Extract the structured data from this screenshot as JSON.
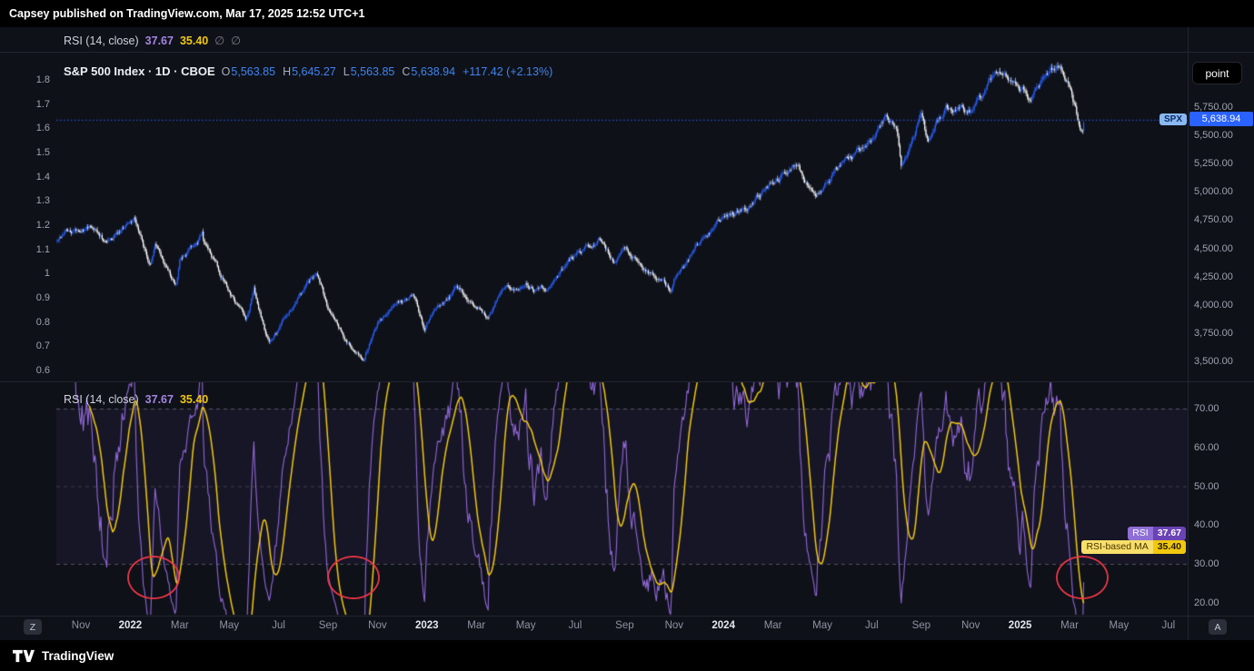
{
  "meta": {
    "publisher_line": "Capsey published on TradingView.com, Mar 17, 2025 12:52 UTC+1",
    "brand_name": "TradingView"
  },
  "colors": {
    "up_candle": "#2962FF",
    "down_candle": "#FFFFFF",
    "rsi_line": "#9168d8",
    "rsi_ma_line": "#F2C80F",
    "current_price_line": "#2962FF",
    "annotation_circle": "#F23645",
    "band_fill": "rgba(126,87,194,0.08)"
  },
  "collapsed_rsi_legend": {
    "name": "RSI (14, close)",
    "rsi_value": "37.67",
    "ma_value": "35.40",
    "empty_a": "∅",
    "empty_b": "∅"
  },
  "price_pane": {
    "legend": {
      "title": "S&P 500 Index · 1D · CBOE",
      "o_label": "O",
      "o_value": "5,563.85",
      "h_label": "H",
      "h_value": "5,645.27",
      "l_label": "L",
      "l_value": "5,563.85",
      "c_label": "C",
      "c_value": "5,638.94",
      "change": "+117.42 (+2.13%)"
    },
    "unit_button_label": "point",
    "symbol_tag": "SPX",
    "last_price_label": "5,638.94",
    "left_axis_labels": [
      "1.8",
      "1.7",
      "1.6",
      "1.5",
      "1.4",
      "1.3",
      "1.2",
      "1.1",
      "1",
      "0.9",
      "0.8",
      "0.7",
      "0.6"
    ],
    "right_axis_labels": [
      "5,750.00",
      "5,500.00",
      "5,250.00",
      "5,000.00",
      "4,750.00",
      "4,500.00",
      "4,250.00",
      "4,000.00",
      "3,750.00",
      "3,500.00"
    ]
  },
  "rsi_pane": {
    "legend": {
      "name": "RSI (14, close)",
      "rsi_value": "37.67",
      "ma_value": "35.40"
    },
    "right_axis_labels": [
      "70.00",
      "60.00",
      "50.00",
      "40.00",
      "30.00",
      "20.00"
    ],
    "rsi_tag": "RSI",
    "rsi_tag_value": "37.67",
    "ma_tag": "RSI-based MA",
    "ma_tag_value": "35.40"
  },
  "time_axis": [
    "Nov",
    "2022",
    "Mar",
    "May",
    "Jul",
    "Sep",
    "Nov",
    "2023",
    "Mar",
    "May",
    "Jul",
    "Sep",
    "Nov",
    "2024",
    "Mar",
    "May",
    "Jul",
    "Sep",
    "Nov",
    "2025",
    "Mar",
    "May",
    "Jul"
  ],
  "corner_buttons": {
    "left": "Z",
    "right": "A"
  },
  "chart_data": [
    {
      "type": "candlestick",
      "title": "S&P 500 Index",
      "interval": "1D",
      "exchange": "CBOE",
      "ohlc": {
        "open": 5563.85,
        "high": 5645.27,
        "low": 5563.85,
        "close": 5638.94,
        "change": 117.42,
        "change_pct": 2.13
      },
      "right_axis_ticks": [
        5750,
        5500,
        5250,
        5000,
        4750,
        4500,
        4250,
        4000,
        3750,
        3500
      ],
      "left_axis_ticks": [
        1.8,
        1.7,
        1.6,
        1.5,
        1.4,
        1.3,
        1.2,
        1.1,
        1,
        0.9,
        0.8,
        0.7,
        0.6
      ],
      "x_start": "Oct 2021",
      "x_end": "Mar 2025",
      "anchors_months_from_oct_2021": [
        0,
        0.5,
        1.5,
        2,
        3,
        3.15,
        3.8,
        4,
        4.85,
        5,
        5.9,
        6,
        7,
        7.7,
        8,
        8.6,
        9,
        10,
        10.55,
        11,
        12,
        12.45,
        13,
        13.8,
        14,
        14.45,
        14.9,
        15,
        16,
        16.15,
        17,
        17.45,
        18,
        19,
        19.8,
        20,
        21,
        22,
        22.6,
        23,
        24,
        24.9,
        25,
        26,
        27,
        28,
        29,
        30,
        30.7,
        31,
        32,
        33,
        33.55,
        34,
        34.2,
        35,
        35.25,
        36,
        37,
        38,
        39,
        39.45,
        40,
        40.6,
        41,
        41.5,
        41.62
      ],
      "anchors_close": [
        4544,
        4630,
        4715,
        4567,
        4766,
        4800,
        4340,
        4516,
        4150,
        4374,
        4630,
        4530,
        4132,
        3900,
        4132,
        3675,
        3785,
        4130,
        4305,
        3955,
        3590,
        3500,
        3872,
        4090,
        4080,
        4100,
        3790,
        3840,
        4077,
        4180,
        3970,
        3860,
        4109,
        4169,
        4120,
        4180,
        4450,
        4589,
        4370,
        4508,
        4288,
        4120,
        4194,
        4568,
        4770,
        4846,
        5096,
        5254,
        4970,
        5036,
        5278,
        5460,
        5667,
        5522,
        5190,
        5648,
        5410,
        5762,
        5705,
        6032,
        5882,
        5830,
        6041,
        6144,
        5955,
        5521,
        5639
      ]
    },
    {
      "type": "line",
      "title": "RSI (14, close)",
      "series": [
        {
          "name": "RSI",
          "last": 37.67
        },
        {
          "name": "RSI-based MA",
          "last": 35.4
        }
      ],
      "levels_dashed": [
        70,
        50,
        30
      ],
      "y_ticks": [
        70,
        60,
        50,
        40,
        30,
        20
      ],
      "ylim": [
        15,
        78
      ],
      "oversold_circles_months": [
        3.85,
        11.95,
        41.45
      ],
      "oversold_circle_level": 27
    }
  ]
}
